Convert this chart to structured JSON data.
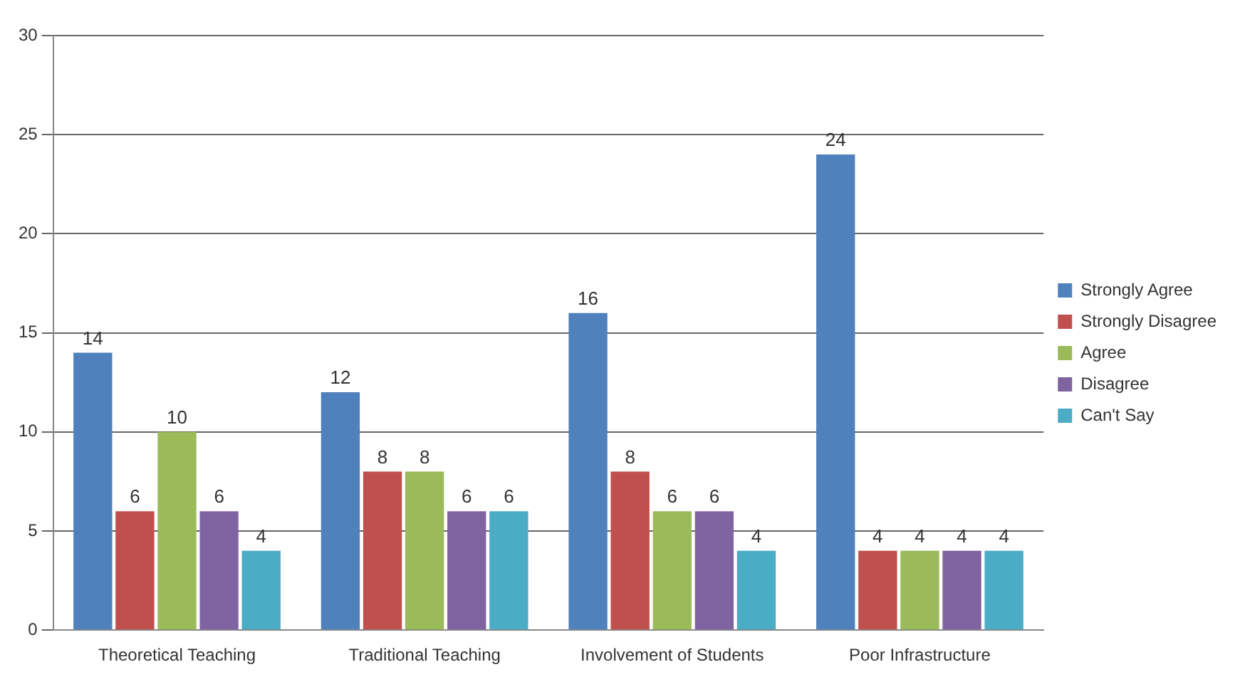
{
  "chart_data": {
    "type": "bar",
    "categories": [
      "Theoretical Teaching",
      "Traditional Teaching",
      "Involvement of Students",
      "Poor Infrastructure"
    ],
    "series": [
      {
        "name": "Strongly Agree",
        "color": "#4f81bd",
        "values": [
          14,
          12,
          16,
          24
        ]
      },
      {
        "name": "Strongly Disagree",
        "color": "#c0504d",
        "values": [
          6,
          8,
          8,
          4
        ]
      },
      {
        "name": "Agree",
        "color": "#9bbb59",
        "values": [
          10,
          8,
          6,
          4
        ]
      },
      {
        "name": "Disagree",
        "color": "#8064a2",
        "values": [
          6,
          6,
          6,
          4
        ]
      },
      {
        "name": "Can't Say",
        "color": "#4bacc6",
        "values": [
          4,
          6,
          4,
          4
        ]
      }
    ],
    "ylim": [
      0,
      30
    ],
    "yticks": [
      0,
      5,
      10,
      15,
      20,
      25,
      30
    ],
    "grid": "y",
    "legend": "right",
    "data_labels": true
  }
}
